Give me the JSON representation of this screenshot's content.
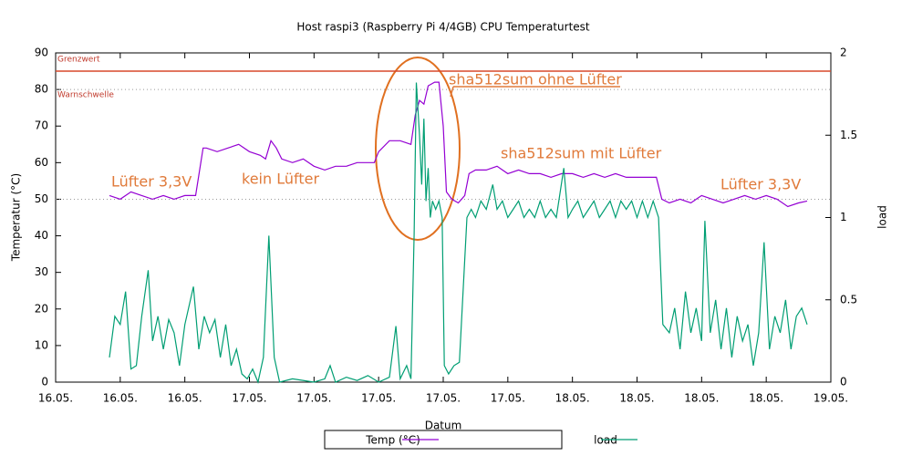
{
  "chart_data": {
    "type": "line",
    "title": "Host raspi3 (Raspberry Pi 4/4GB) CPU Temperaturtest",
    "x_label": "Datum",
    "y_label": "Temperatur (°C)",
    "y2_label": "load",
    "xlim": [
      0,
      72
    ],
    "xticks": [
      {
        "value": 0,
        "label": "16.05."
      },
      {
        "value": 6,
        "label": "16.05."
      },
      {
        "value": 12,
        "label": "16.05."
      },
      {
        "value": 18,
        "label": "17.05."
      },
      {
        "value": 24,
        "label": "17.05."
      },
      {
        "value": 30,
        "label": "17.05."
      },
      {
        "value": 36,
        "label": "17.05."
      },
      {
        "value": 42,
        "label": "17.05."
      },
      {
        "value": 48,
        "label": "18.05."
      },
      {
        "value": 54,
        "label": "18.05."
      },
      {
        "value": 60,
        "label": "18.05."
      },
      {
        "value": 66,
        "label": "18.05."
      },
      {
        "value": 72,
        "label": "19.05."
      }
    ],
    "ylim": [
      0,
      90
    ],
    "yticks": [
      0,
      10,
      20,
      30,
      40,
      50,
      60,
      70,
      80,
      90
    ],
    "y2lim": [
      0,
      2
    ],
    "y2ticks": [
      0,
      0.5,
      1,
      1.5,
      2
    ],
    "thresholds": [
      {
        "label": "Grenzwert",
        "value": 85,
        "style": "solid",
        "color": "#d9482b"
      },
      {
        "label": "Warnschwelle",
        "value": 80,
        "style": "dotted",
        "color": "#999999"
      }
    ],
    "guide_lines": [
      50
    ],
    "annotations": [
      "Lüfter 3,3V",
      "kein Lüfter",
      "sha512sum ohne Lüfter",
      "sha512sum mit Lüfter",
      "Lüfter 3,3V"
    ],
    "annotation_color": "#e07a3a",
    "legend": "bottom",
    "series": [
      {
        "name": "Temp (°C)",
        "color": "#9400d3",
        "axis": "y",
        "x": [
          5,
          6,
          7,
          8,
          9,
          10,
          11,
          12,
          13,
          13.7,
          14,
          15,
          16,
          17,
          18,
          19,
          19.5,
          20,
          20.5,
          21,
          22,
          23,
          24,
          25,
          26,
          27,
          28,
          29,
          29.6,
          30,
          31,
          32,
          33,
          33.4,
          33.8,
          34.2,
          34.6,
          35.2,
          35.6,
          36,
          36.3,
          36.8,
          37.4,
          38,
          38.4,
          39,
          40,
          41,
          42,
          43,
          44,
          45,
          46,
          47,
          48,
          49,
          50,
          51,
          52,
          53,
          54,
          55,
          55.8,
          56.3,
          57,
          58,
          59,
          60,
          61,
          62,
          63,
          64,
          65,
          66,
          67,
          68,
          69,
          69.8
        ],
        "values": [
          51,
          50,
          52,
          51,
          50,
          51,
          50,
          51,
          51,
          64,
          64,
          63,
          64,
          65,
          63,
          62,
          61,
          66,
          64,
          61,
          60,
          61,
          59,
          58,
          59,
          59,
          60,
          60,
          60,
          63,
          66,
          66,
          65,
          73,
          77,
          76,
          81,
          82,
          82,
          70,
          52,
          50,
          49,
          51,
          57,
          58,
          58,
          59,
          57,
          58,
          57,
          57,
          56,
          57,
          57,
          56,
          57,
          56,
          57,
          56,
          56,
          56,
          56,
          50,
          49,
          50,
          49,
          51,
          50,
          49,
          50,
          51,
          50,
          51,
          50,
          48,
          49,
          49.5
        ]
      },
      {
        "name": "load",
        "color": "#009e73",
        "axis": "y2",
        "x": [
          5,
          5.5,
          6,
          6.5,
          7,
          7.5,
          8,
          8.6,
          9,
          9.5,
          10,
          10.5,
          11,
          11.5,
          12,
          12.8,
          13.3,
          13.8,
          14.3,
          14.8,
          15.3,
          15.8,
          16.3,
          16.8,
          17.3,
          17.8,
          18.3,
          18.8,
          19.3,
          19.8,
          20.3,
          20.8,
          22,
          24,
          25,
          25.5,
          26,
          27,
          28,
          29,
          30,
          31,
          31.6,
          32,
          32.6,
          33,
          33.3,
          33.5,
          33.8,
          34,
          34.2,
          34.4,
          34.6,
          34.8,
          35,
          35.3,
          35.6,
          35.9,
          36.1,
          36.5,
          37,
          37.5,
          38.2,
          38.6,
          39,
          39.5,
          40,
          40.6,
          41,
          41.5,
          42,
          42.5,
          43,
          43.5,
          44,
          44.5,
          45,
          45.5,
          46,
          46.5,
          47.2,
          47.6,
          48,
          48.5,
          49,
          49.5,
          50,
          50.5,
          51,
          51.5,
          52,
          52.5,
          53,
          53.5,
          54,
          54.5,
          55,
          55.5,
          56,
          56.4,
          57,
          57.5,
          58,
          58.5,
          59,
          59.5,
          60,
          60.3,
          60.8,
          61.3,
          61.8,
          62.3,
          62.8,
          63.3,
          63.8,
          64.3,
          64.8,
          65.3,
          65.8,
          66.3,
          66.8,
          67.3,
          67.8,
          68.3,
          68.8,
          69.3,
          69.8
        ],
        "values": [
          0.15,
          0.4,
          0.35,
          0.55,
          0.08,
          0.1,
          0.4,
          0.68,
          0.25,
          0.4,
          0.2,
          0.38,
          0.3,
          0.1,
          0.35,
          0.58,
          0.2,
          0.4,
          0.3,
          0.38,
          0.15,
          0.35,
          0.1,
          0.2,
          0.05,
          0.02,
          0.08,
          0,
          0.15,
          0.89,
          0.15,
          0,
          0.02,
          0,
          0.02,
          0.1,
          0,
          0.03,
          0.01,
          0.04,
          0,
          0.03,
          0.34,
          0.02,
          0.1,
          0.02,
          0.9,
          1.82,
          1.5,
          1.2,
          1.6,
          1.1,
          1.3,
          1,
          1.1,
          1.05,
          1.1,
          1,
          0.1,
          0.05,
          0.1,
          0.12,
          1,
          1.05,
          1,
          1.1,
          1.05,
          1.2,
          1.05,
          1.1,
          1,
          1.05,
          1.1,
          1,
          1.05,
          1,
          1.1,
          1,
          1.05,
          1,
          1.3,
          1,
          1.05,
          1.1,
          1,
          1.05,
          1.1,
          1,
          1.05,
          1.1,
          1,
          1.1,
          1.05,
          1.1,
          1,
          1.1,
          1,
          1.1,
          1,
          0.35,
          0.3,
          0.45,
          0.2,
          0.55,
          0.3,
          0.45,
          0.25,
          0.98,
          0.3,
          0.5,
          0.2,
          0.45,
          0.15,
          0.4,
          0.25,
          0.35,
          0.1,
          0.3,
          0.85,
          0.2,
          0.4,
          0.3,
          0.5,
          0.2,
          0.4,
          0.45,
          0.35
        ]
      }
    ]
  }
}
